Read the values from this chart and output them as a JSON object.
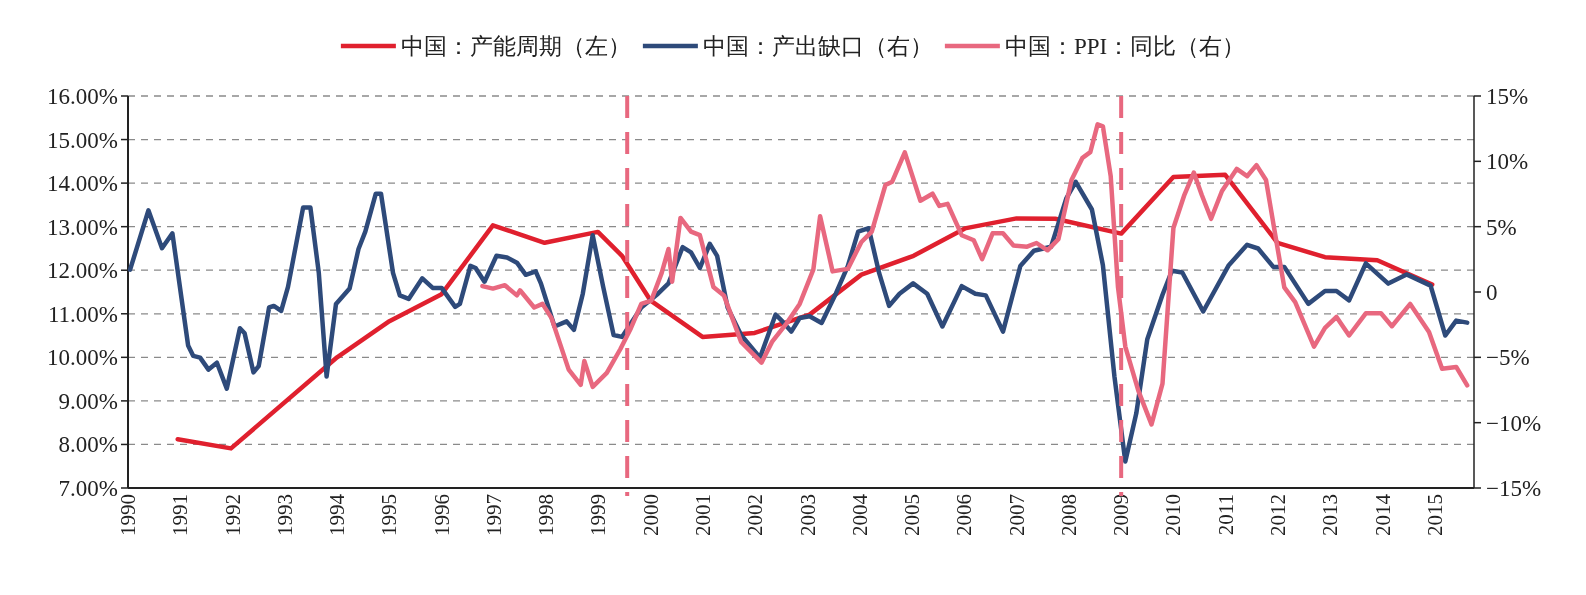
{
  "chart_data": {
    "type": "line",
    "legend": "top",
    "grid": "y",
    "line_style": "solid",
    "xlim": [
      1990,
      2015.75
    ],
    "xticks": [
      1990,
      1991,
      1992,
      1993,
      1994,
      1995,
      1996,
      1997,
      1998,
      1999,
      2000,
      2001,
      2002,
      2003,
      2004,
      2005,
      2006,
      2007,
      2008,
      2009,
      2010,
      2011,
      2012,
      2013,
      2014,
      2015
    ],
    "ylim": [
      7,
      16
    ],
    "yticks": [
      {
        "value": 7,
        "label": "7.00%"
      },
      {
        "value": 8,
        "label": "8.00%"
      },
      {
        "value": 9,
        "label": "9.00%"
      },
      {
        "value": 10,
        "label": "10.00%"
      },
      {
        "value": 11,
        "label": "11.00%"
      },
      {
        "value": 12,
        "label": "12.00%"
      },
      {
        "value": 13,
        "label": "13.00%"
      },
      {
        "value": 14,
        "label": "14.00%"
      },
      {
        "value": 15,
        "label": "15.00%"
      },
      {
        "value": 16,
        "label": "16.00%"
      }
    ],
    "y2lim": [
      -15,
      15
    ],
    "y2ticks": [
      {
        "value": -15,
        "label": "−15%"
      },
      {
        "value": -10,
        "label": "−10%"
      },
      {
        "value": -5,
        "label": "−5%"
      },
      0,
      {
        "value": 5,
        "label": "5%"
      },
      {
        "value": 10,
        "label": "10%"
      },
      {
        "value": 15,
        "label": "15%"
      }
    ],
    "ref_lines": [
      {
        "axis": "x",
        "value": 1999.55,
        "color": "#e8687f",
        "line_style": "dashed"
      },
      {
        "axis": "x",
        "value": 2009.0,
        "color": "#e8687f",
        "line_style": "dashed"
      }
    ],
    "series": [
      {
        "name": "中国：产能周期（左）",
        "color": "#e0202e",
        "x": [
          1990.95,
          1991.97,
          1994.0,
          1995.0,
          1996.0,
          1996.98,
          1997.97,
          1998.99,
          1999.45,
          2000.0,
          2000.99,
          2001.99,
          2003.04,
          2004.03,
          2005.03,
          2006.01,
          2007.0,
          2007.74,
          2009.0,
          2010.0,
          2010.99,
          2011.99,
          2012.9,
          2013.9,
          2014.95
        ],
        "values": [
          8.12,
          7.91,
          10.0,
          10.83,
          11.45,
          13.03,
          12.63,
          12.88,
          12.33,
          11.3,
          10.47,
          10.56,
          10.98,
          11.9,
          12.33,
          12.96,
          13.19,
          13.18,
          12.84,
          14.14,
          14.19,
          12.63,
          12.3,
          12.23,
          11.67
        ]
      },
      {
        "name": "中国：产出缺口（右）",
        "color": "#2e4a7a",
        "axis": "y2",
        "x": [
          1990.04,
          1990.39,
          1990.65,
          1990.85,
          1991.15,
          1991.25,
          1991.38,
          1991.54,
          1991.7,
          1991.89,
          1992.14,
          1992.23,
          1992.4,
          1992.5,
          1992.7,
          1992.79,
          1992.93,
          1993.06,
          1993.35,
          1993.49,
          1993.65,
          1993.8,
          1993.98,
          1994.24,
          1994.41,
          1994.54,
          1994.74,
          1994.84,
          1995.07,
          1995.2,
          1995.37,
          1995.63,
          1995.83,
          1996.0,
          1996.26,
          1996.35,
          1996.55,
          1996.65,
          1996.82,
          1997.05,
          1997.25,
          1997.44,
          1997.61,
          1997.8,
          1997.9,
          1998.16,
          1998.39,
          1998.53,
          1998.7,
          1998.89,
          1999.09,
          1999.29,
          1999.45,
          1999.82,
          2000.14,
          2000.34,
          2000.61,
          2000.77,
          2000.94,
          2001.13,
          2001.27,
          2001.47,
          2001.73,
          2002.09,
          2002.39,
          2002.52,
          2002.69,
          2002.85,
          2003.04,
          2003.27,
          2003.54,
          2003.77,
          2003.97,
          2004.17,
          2004.37,
          2004.56,
          2004.76,
          2005.02,
          2005.29,
          2005.58,
          2005.95,
          2006.21,
          2006.41,
          2006.74,
          2007.07,
          2007.33,
          2007.66,
          2007.95,
          2008.13,
          2008.44,
          2008.65,
          2008.87,
          2009.08,
          2009.29,
          2009.5,
          2009.79,
          2009.97,
          2010.17,
          2010.57,
          2011.06,
          2011.41,
          2011.62,
          2011.91,
          2012.12,
          2012.58,
          2012.9,
          2013.12,
          2013.36,
          2013.68,
          2014.11,
          2014.46,
          2014.92,
          2015.2,
          2015.41,
          2015.62
        ],
        "values": [
          1.71,
          6.25,
          3.35,
          4.49,
          -4.09,
          -4.89,
          -5.02,
          -5.94,
          -5.41,
          -7.39,
          -2.77,
          -3.16,
          -6.15,
          -5.67,
          -1.19,
          -1.06,
          -1.45,
          0.39,
          6.46,
          6.46,
          1.46,
          -6.47,
          -0.91,
          0.26,
          3.29,
          4.62,
          7.52,
          7.52,
          1.46,
          -0.26,
          -0.53,
          1.05,
          0.31,
          0.31,
          -1.14,
          -0.91,
          2.0,
          1.84,
          0.79,
          2.77,
          2.64,
          2.24,
          1.32,
          1.58,
          0.66,
          -2.64,
          -2.25,
          -2.9,
          -0.13,
          4.35,
          0.39,
          -3.29,
          -3.44,
          -1.19,
          -0.13,
          0.66,
          3.43,
          3.03,
          1.84,
          3.69,
          2.77,
          -1.19,
          -3.29,
          -5.02,
          -1.72,
          -2.25,
          -3.03,
          -1.99,
          -1.85,
          -2.37,
          -0.13,
          1.98,
          4.62,
          4.88,
          1.46,
          -1.06,
          -0.13,
          0.66,
          -0.13,
          -2.64,
          0.45,
          -0.13,
          -0.26,
          -3.03,
          1.98,
          3.16,
          3.47,
          7.16,
          8.43,
          6.31,
          2.05,
          -6.45,
          -12.97,
          -9.28,
          -3.61,
          -0.21,
          1.63,
          1.49,
          -1.49,
          2.05,
          3.61,
          3.33,
          1.92,
          1.92,
          -0.91,
          0.08,
          0.08,
          -0.64,
          2.2,
          0.64,
          1.35,
          0.49,
          -3.33,
          -2.19,
          -2.34
        ]
      },
      {
        "name": "中国：PPI：同比（右）",
        "color": "#e8687f",
        "axis": "y2",
        "x": [
          1996.78,
          1996.98,
          1997.21,
          1997.44,
          1997.5,
          1997.77,
          1997.93,
          1998.1,
          1998.43,
          1998.66,
          1998.73,
          1998.89,
          1999.16,
          1999.42,
          1999.62,
          1999.82,
          2000.01,
          2000.21,
          2000.34,
          2000.41,
          2000.57,
          2000.77,
          2000.94,
          2001.2,
          2001.4,
          2001.73,
          2002.12,
          2002.32,
          2002.58,
          2002.85,
          2003.11,
          2003.24,
          2003.48,
          2003.77,
          2004.03,
          2004.23,
          2004.49,
          2004.62,
          2004.86,
          2005.16,
          2005.39,
          2005.52,
          2005.68,
          2005.95,
          2006.18,
          2006.34,
          2006.54,
          2006.74,
          2006.94,
          2007.2,
          2007.38,
          2007.59,
          2007.8,
          2008.05,
          2008.26,
          2008.41,
          2008.55,
          2008.65,
          2008.8,
          2008.94,
          2009.08,
          2009.33,
          2009.58,
          2009.79,
          2010.0,
          2010.21,
          2010.39,
          2010.54,
          2010.72,
          2010.93,
          2011.21,
          2011.41,
          2011.59,
          2011.77,
          2011.95,
          2012.12,
          2012.33,
          2012.69,
          2012.9,
          2013.12,
          2013.36,
          2013.68,
          2013.97,
          2014.18,
          2014.53,
          2014.89,
          2015.14,
          2015.41,
          2015.62
        ],
        "values": [
          0.45,
          0.26,
          0.52,
          -0.26,
          0.13,
          -1.19,
          -0.91,
          -1.98,
          -5.94,
          -7.1,
          -5.28,
          -7.26,
          -6.19,
          -4.36,
          -2.77,
          -0.91,
          -0.66,
          1.46,
          3.29,
          0.79,
          5.67,
          4.62,
          4.35,
          0.39,
          -0.26,
          -3.82,
          -5.41,
          -3.82,
          -2.5,
          -0.91,
          1.71,
          5.8,
          1.58,
          1.77,
          3.83,
          4.62,
          8.18,
          8.44,
          10.68,
          6.99,
          7.52,
          6.59,
          6.74,
          4.35,
          3.96,
          2.51,
          4.49,
          4.49,
          3.56,
          3.47,
          3.75,
          3.19,
          4.04,
          8.57,
          10.27,
          10.7,
          12.83,
          12.68,
          8.86,
          0.36,
          -4.18,
          -7.57,
          -10.13,
          -7.01,
          4.9,
          7.44,
          9.14,
          7.44,
          5.6,
          7.73,
          9.42,
          8.86,
          9.71,
          8.57,
          4.32,
          0.36,
          -0.78,
          -4.18,
          -2.75,
          -1.91,
          -3.33,
          -1.63,
          -1.63,
          -2.62,
          -0.91,
          -3.05,
          -5.88,
          -5.73,
          -7.15
        ]
      }
    ]
  }
}
